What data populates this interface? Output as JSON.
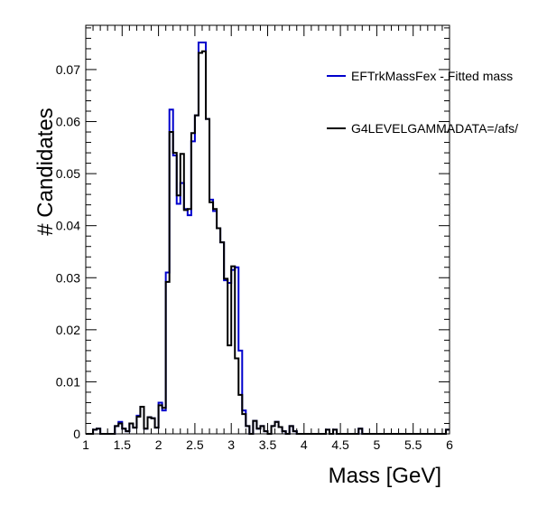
{
  "chart_data": {
    "type": "histogram",
    "xlabel": "Mass [GeV]",
    "ylabel": "# Candidates",
    "xlim": [
      1,
      6
    ],
    "ylim": [
      0,
      0.0785
    ],
    "xticks": [
      "1",
      "1.5",
      "2",
      "2.5",
      "3",
      "3.5",
      "4",
      "4.5",
      "5",
      "5.5",
      "6"
    ],
    "yticks": [
      "0",
      "0.01",
      "0.02",
      "0.03",
      "0.04",
      "0.05",
      "0.06",
      "0.07"
    ],
    "legend_placement": "top-right",
    "bin_edges_start": 1.0,
    "bin_width": 0.05,
    "series": [
      {
        "name": "EFTrkMassFex - Fitted mass",
        "color": "#0000cc",
        "values": [
          0,
          0,
          0.0008,
          0.001,
          0,
          0,
          0,
          0,
          0.0015,
          0.0023,
          0.001,
          0.0005,
          0.002,
          0.0012,
          0.0035,
          0.0052,
          0.001,
          0.0032,
          0.003,
          0.0012,
          0.006,
          0.0045,
          0.031,
          0.0623,
          0.0535,
          0.0442,
          0.0482,
          0.0432,
          0.042,
          0.0562,
          0.0612,
          0.0752,
          0.0752,
          0.0605,
          0.045,
          0.0428,
          0.0395,
          0.0368,
          0.0295,
          0.029,
          0.0315,
          0.032,
          0.016,
          0.0045,
          0.0015,
          0,
          0.0025,
          0.001,
          0.0015,
          0.0005,
          0,
          0.0015,
          0.0023,
          0.0013,
          0.0005,
          0,
          0.0015,
          0.0005,
          0,
          0,
          0,
          0,
          0,
          0,
          0,
          0,
          0.0008,
          0,
          0.0008,
          0,
          0,
          0,
          0,
          0,
          0,
          0.001,
          0,
          0,
          0,
          0,
          0,
          0,
          0,
          0,
          0,
          0,
          0,
          0,
          0,
          0,
          0,
          0,
          0,
          0,
          0,
          0,
          0,
          0,
          0,
          0.0008
        ]
      },
      {
        "name": "G4LEVELGAMMADATA=/afs/",
        "color": "#000000",
        "values": [
          0,
          0,
          0.0008,
          0.001,
          0,
          0,
          0,
          0,
          0.0015,
          0.002,
          0.001,
          0.0005,
          0.002,
          0.0012,
          0.0033,
          0.0052,
          0.001,
          0.0032,
          0.003,
          0.0012,
          0.0055,
          0.005,
          0.0292,
          0.058,
          0.054,
          0.0458,
          0.0538,
          0.043,
          0.0432,
          0.0578,
          0.0612,
          0.0732,
          0.0735,
          0.0605,
          0.0445,
          0.0432,
          0.0395,
          0.0368,
          0.0298,
          0.017,
          0.0322,
          0.0145,
          0.0075,
          0.0038,
          0.0015,
          0,
          0.0025,
          0.001,
          0.0015,
          0.0005,
          0,
          0.0015,
          0.0023,
          0.0013,
          0.0005,
          0,
          0.0015,
          0.0005,
          0,
          0,
          0,
          0,
          0,
          0,
          0,
          0,
          0.0008,
          0,
          0.0008,
          0,
          0,
          0,
          0,
          0,
          0,
          0.001,
          0,
          0,
          0,
          0,
          0,
          0,
          0,
          0,
          0,
          0,
          0,
          0,
          0,
          0,
          0,
          0,
          0,
          0,
          0,
          0,
          0,
          0,
          0,
          0.0008
        ]
      }
    ]
  }
}
